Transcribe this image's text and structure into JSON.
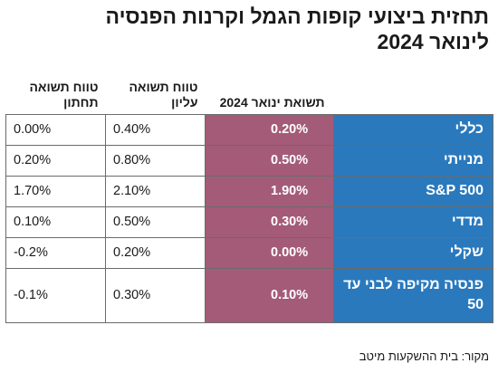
{
  "title": {
    "line1": "תחזית ביצועי קופות הגמל וקרנות הפנסיה",
    "line2": "לינואר 2024"
  },
  "table": {
    "headers": {
      "name": "",
      "january": "תשואת ינואר 2024",
      "high": "טווח תשואה עליון",
      "low": "טווח תשואה תחתון"
    },
    "rows": [
      {
        "name": "כללי",
        "january": "0.20%",
        "high": "0.40%",
        "low": "0.00%"
      },
      {
        "name": "מנייתי",
        "january": "0.50%",
        "high": "0.80%",
        "low": "0.20%"
      },
      {
        "name": "S&P 500",
        "january": "1.90%",
        "high": "2.10%",
        "low": "1.70%"
      },
      {
        "name": "מדדי",
        "january": "0.30%",
        "high": "0.50%",
        "low": "0.10%"
      },
      {
        "name": "שקלי",
        "january": "0.00%",
        "high": "0.20%",
        "low": "-0.2%"
      },
      {
        "name": "פנסיה מקיפה לבני עד 50",
        "january": "0.10%",
        "high": "0.30%",
        "low": "-0.1%"
      }
    ]
  },
  "source": "מקור: בית ההשקעות מיטב",
  "colors": {
    "name_column": "#2a79bd",
    "january_column": "#a45b77",
    "border": "#6b6b6b"
  }
}
